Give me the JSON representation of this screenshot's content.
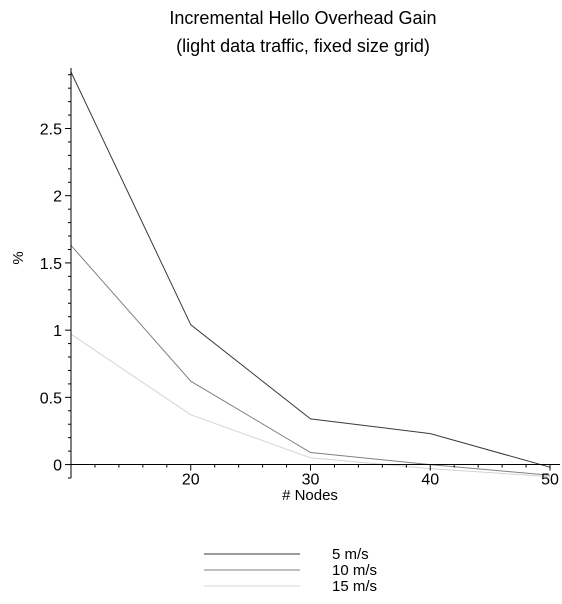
{
  "chart_data": {
    "type": "line",
    "title": "Incremental Hello Overhead Gain",
    "subtitle": "(light data traffic, fixed size grid)",
    "xlabel": "# Nodes",
    "ylabel": "%",
    "x": [
      10,
      20,
      30,
      40,
      50
    ],
    "xlim": [
      10,
      51
    ],
    "ylim": [
      -0.1,
      2.95
    ],
    "x_ticks": [
      20,
      30,
      40,
      50
    ],
    "y_ticks": [
      0,
      0.5,
      1,
      1.5,
      2,
      2.5
    ],
    "x_tick_labels": [
      "20",
      "30",
      "40",
      "50"
    ],
    "y_tick_labels": [
      "0",
      "0.5",
      "1",
      "1.5",
      "2",
      "2.5"
    ],
    "grid": false,
    "legend_position": "bottom-center",
    "series": [
      {
        "name": "5 m/s",
        "color": "#3a3a3a",
        "values": [
          2.92,
          1.04,
          0.34,
          0.23,
          -0.02
        ]
      },
      {
        "name": "10 m/s",
        "color": "#808080",
        "values": [
          1.63,
          0.62,
          0.09,
          0.0,
          -0.08
        ]
      },
      {
        "name": "15 m/s",
        "color": "#d4d4d4",
        "values": [
          0.97,
          0.37,
          0.05,
          -0.03,
          -0.09
        ]
      }
    ]
  }
}
